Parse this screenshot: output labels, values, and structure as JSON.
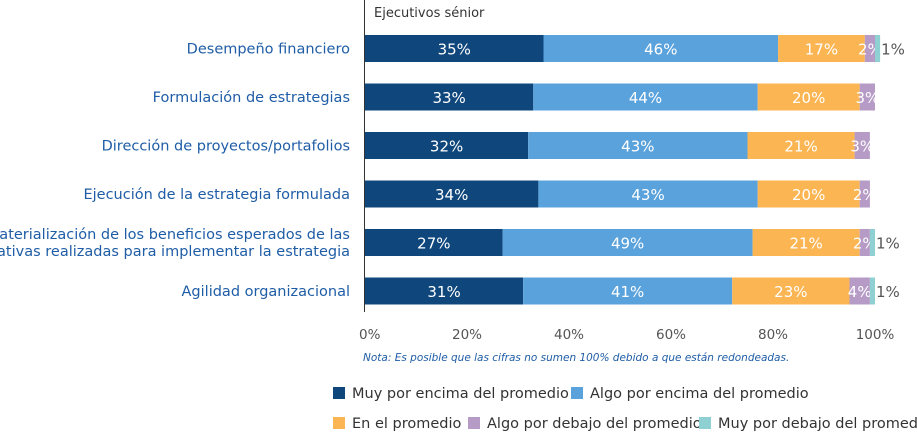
{
  "chart_data": {
    "type": "bar",
    "orientation": "horizontal",
    "stacked": true,
    "title": "Ejecutivos sénior",
    "categories": [
      "Desempeño financiero",
      "Formulación de estrategias",
      "Dirección de proyectos/portafolios",
      "Ejecución de la estrategia formulada",
      "Materialización de los beneficios esperados de las iniciativas realizadas para implementar la estrategia",
      "Agilidad organizacional"
    ],
    "category_lines": [
      [
        "Desempeño financiero"
      ],
      [
        "Formulación de estrategias"
      ],
      [
        "Dirección de proyectos/portafolios"
      ],
      [
        "Ejecución de la estrategia formulada"
      ],
      [
        "Materialización de los beneficios esperados de las",
        "iniciativas realizadas para implementar la estrategia"
      ],
      [
        "Agilidad organizacional"
      ]
    ],
    "series": [
      {
        "name": "Muy por encima del promedio",
        "color": "#0f477c",
        "values": [
          35,
          33,
          32,
          34,
          27,
          31
        ]
      },
      {
        "name": "Algo por encima del promedio",
        "color": "#5aa2dc",
        "values": [
          46,
          44,
          43,
          43,
          49,
          41
        ]
      },
      {
        "name": "En el promedio",
        "color": "#fbb552",
        "values": [
          17,
          20,
          21,
          20,
          21,
          23
        ]
      },
      {
        "name": "Algo por debajo del promedio",
        "color": "#b69bc7",
        "values": [
          2,
          3,
          3,
          2,
          2,
          4
        ]
      },
      {
        "name": "Muy por debajo del promedio",
        "color": "#8fd0d3",
        "values": [
          1,
          0,
          0,
          0,
          1,
          1
        ]
      }
    ],
    "xlim": [
      0,
      100
    ],
    "xticks": [
      "0%",
      "20%",
      "40%",
      "60%",
      "80%",
      "100%"
    ],
    "xtick_values": [
      0,
      20,
      40,
      60,
      80,
      100
    ],
    "value_suffix": "%",
    "note": "Nota: Es posible que las cifras no sumen 100% debido a que están redondeadas.",
    "grid": false,
    "legend_position": "bottom",
    "colors": {
      "category_text": "#1f5da6",
      "axis_text": "#555555",
      "note_text": "#1f5da6",
      "legend_text": "#333333",
      "axis_line": "#333333"
    }
  }
}
